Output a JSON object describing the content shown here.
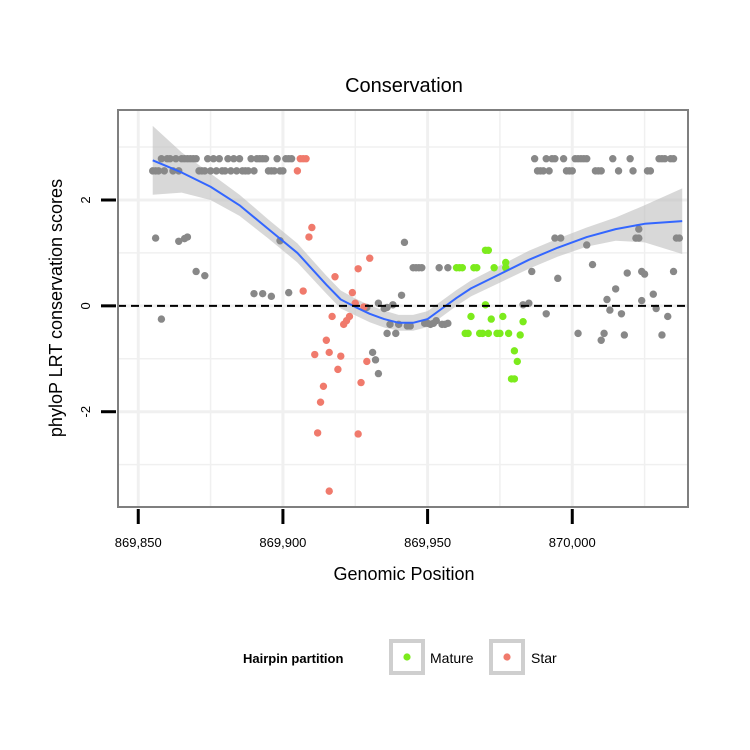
{
  "colors": {
    "background_points": "#888888",
    "mature": "#7CEB1C",
    "star": "#F07A6C",
    "smooth_line": "#3366FF",
    "ribbon": "#BEBEBE",
    "panel_border": "#7F7F7F",
    "grid": "#F0F0F0"
  },
  "chart_data": {
    "type": "scatter",
    "title": "Conservation",
    "xlabel": "Genomic Position",
    "ylabel": "phyloP LRT conservation scores",
    "xlim": [
      869843,
      870040
    ],
    "ylim": [
      -3.8,
      3.7
    ],
    "x_ticks": [
      869850,
      869900,
      869950,
      870000
    ],
    "x_tick_labels": [
      "869,850",
      "869,900",
      "869,950",
      "870,000"
    ],
    "y_ticks": [
      -2,
      0,
      2
    ],
    "y_tick_labels": [
      "-2",
      "0",
      "2"
    ],
    "hline": {
      "y": 0,
      "style": "dashed"
    },
    "legend": {
      "title": "Hairpin partition",
      "position": "bottom",
      "entries": [
        {
          "label": "Mature",
          "series": "mature"
        },
        {
          "label": "Star",
          "series": "star"
        }
      ]
    },
    "series": [
      {
        "name": "other",
        "points": [
          [
            869855,
            2.55
          ],
          [
            869856,
            2.55
          ],
          [
            869857,
            2.55
          ],
          [
            869858,
            2.78
          ],
          [
            869859,
            2.55
          ],
          [
            869860,
            2.78
          ],
          [
            869861,
            2.78
          ],
          [
            869862,
            2.55
          ],
          [
            869863,
            2.78
          ],
          [
            869864,
            2.55
          ],
          [
            869865,
            2.78
          ],
          [
            869866,
            2.78
          ],
          [
            869867,
            2.78
          ],
          [
            869868,
            2.78
          ],
          [
            869869,
            2.78
          ],
          [
            869870,
            2.78
          ],
          [
            869871,
            2.55
          ],
          [
            869872,
            2.55
          ],
          [
            869873,
            2.55
          ],
          [
            869874,
            2.78
          ],
          [
            869875,
            2.55
          ],
          [
            869876,
            2.78
          ],
          [
            869877,
            2.55
          ],
          [
            869878,
            2.78
          ],
          [
            869879,
            2.55
          ],
          [
            869880,
            2.55
          ],
          [
            869881,
            2.78
          ],
          [
            869882,
            2.55
          ],
          [
            869883,
            2.78
          ],
          [
            869884,
            2.55
          ],
          [
            869885,
            2.78
          ],
          [
            869886,
            2.55
          ],
          [
            869887,
            2.55
          ],
          [
            869888,
            2.55
          ],
          [
            869889,
            2.78
          ],
          [
            869890,
            2.55
          ],
          [
            869891,
            2.78
          ],
          [
            869892,
            2.78
          ],
          [
            869893,
            2.78
          ],
          [
            869894,
            2.78
          ],
          [
            869895,
            2.55
          ],
          [
            869896,
            2.55
          ],
          [
            869897,
            2.55
          ],
          [
            869898,
            2.78
          ],
          [
            869899,
            2.55
          ],
          [
            869900,
            2.55
          ],
          [
            869901,
            2.78
          ],
          [
            869902,
            2.78
          ],
          [
            869903,
            2.78
          ],
          [
            869856,
            1.28
          ],
          [
            869858,
            -0.25
          ],
          [
            869864,
            1.22
          ],
          [
            869866,
            1.27
          ],
          [
            869867,
            1.3
          ],
          [
            869870,
            0.65
          ],
          [
            869873,
            0.57
          ],
          [
            869890,
            0.23
          ],
          [
            869893,
            0.23
          ],
          [
            869896,
            0.18
          ],
          [
            869899,
            1.23
          ],
          [
            869902,
            0.25
          ],
          [
            869929,
            -0.03
          ],
          [
            869931,
            -0.88
          ],
          [
            869932,
            -1.02
          ],
          [
            869933,
            -1.28
          ],
          [
            869933,
            0.05
          ],
          [
            869935,
            -0.05
          ],
          [
            869936,
            -0.03
          ],
          [
            869936,
            -0.52
          ],
          [
            869937,
            -0.35
          ],
          [
            869938,
            0.02
          ],
          [
            869939,
            -0.52
          ],
          [
            869940,
            -0.35
          ],
          [
            869941,
            0.2
          ],
          [
            869942,
            1.2
          ],
          [
            869943,
            -0.38
          ],
          [
            869944,
            -0.38
          ],
          [
            869945,
            0.72
          ],
          [
            869946,
            0.72
          ],
          [
            869947,
            0.72
          ],
          [
            869948,
            0.72
          ],
          [
            869949,
            -0.33
          ],
          [
            869950,
            -0.33
          ],
          [
            869951,
            -0.35
          ],
          [
            869952,
            -0.33
          ],
          [
            869953,
            -0.28
          ],
          [
            869954,
            0.72
          ],
          [
            869955,
            -0.35
          ],
          [
            869956,
            -0.35
          ],
          [
            869957,
            0.72
          ],
          [
            869957,
            -0.33
          ],
          [
            869983,
            0.02
          ],
          [
            869985,
            0.05
          ],
          [
            869986,
            0.65
          ],
          [
            869987,
            2.78
          ],
          [
            869988,
            2.55
          ],
          [
            869989,
            2.55
          ],
          [
            869990,
            2.55
          ],
          [
            869991,
            2.78
          ],
          [
            869991,
            -0.15
          ],
          [
            869992,
            2.55
          ],
          [
            869993,
            2.78
          ],
          [
            869994,
            1.28
          ],
          [
            869994,
            2.78
          ],
          [
            869995,
            0.52
          ],
          [
            869996,
            1.28
          ],
          [
            869997,
            2.78
          ],
          [
            869998,
            2.55
          ],
          [
            869999,
            2.55
          ],
          [
            870000,
            2.55
          ],
          [
            870001,
            2.78
          ],
          [
            870002,
            2.78
          ],
          [
            870002,
            -0.52
          ],
          [
            870003,
            2.78
          ],
          [
            870004,
            2.78
          ],
          [
            870005,
            2.78
          ],
          [
            870005,
            1.15
          ],
          [
            870007,
            0.78
          ],
          [
            870008,
            2.55
          ],
          [
            870009,
            2.55
          ],
          [
            870010,
            -0.65
          ],
          [
            870010,
            2.55
          ],
          [
            870011,
            -0.52
          ],
          [
            870012,
            0.12
          ],
          [
            870013,
            -0.08
          ],
          [
            870014,
            2.78
          ],
          [
            870015,
            0.32
          ],
          [
            870016,
            2.55
          ],
          [
            870017,
            -0.15
          ],
          [
            870018,
            -0.55
          ],
          [
            870019,
            0.62
          ],
          [
            870020,
            2.78
          ],
          [
            870021,
            2.55
          ],
          [
            870022,
            1.28
          ],
          [
            870023,
            1.28
          ],
          [
            870023,
            1.45
          ],
          [
            870024,
            0.65
          ],
          [
            870024,
            0.1
          ],
          [
            870025,
            0.6
          ],
          [
            870026,
            2.55
          ],
          [
            870027,
            2.55
          ],
          [
            870028,
            0.22
          ],
          [
            870029,
            -0.05
          ],
          [
            870030,
            2.78
          ],
          [
            870031,
            -0.55
          ],
          [
            870031,
            2.78
          ],
          [
            870032,
            2.78
          ],
          [
            870033,
            -0.2
          ],
          [
            870034,
            2.78
          ],
          [
            870035,
            2.78
          ],
          [
            870035,
            0.65
          ],
          [
            870036,
            1.28
          ],
          [
            870037,
            1.28
          ]
        ]
      },
      {
        "name": "mature",
        "points": [
          [
            869960,
            0.72
          ],
          [
            869961,
            0.72
          ],
          [
            869962,
            0.72
          ],
          [
            869963,
            -0.52
          ],
          [
            869964,
            -0.52
          ],
          [
            869965,
            -0.2
          ],
          [
            869966,
            0.72
          ],
          [
            869967,
            0.72
          ],
          [
            869968,
            -0.52
          ],
          [
            869969,
            -0.52
          ],
          [
            869970,
            1.05
          ],
          [
            869970,
            0.02
          ],
          [
            869971,
            1.05
          ],
          [
            869971,
            -0.52
          ],
          [
            869972,
            -0.25
          ],
          [
            869973,
            0.72
          ],
          [
            869974,
            -0.52
          ],
          [
            869975,
            -0.52
          ],
          [
            869976,
            -0.2
          ],
          [
            869977,
            0.72
          ],
          [
            869977,
            0.82
          ],
          [
            869978,
            -0.52
          ],
          [
            869979,
            -1.38
          ],
          [
            869980,
            -1.38
          ],
          [
            869980,
            -0.85
          ],
          [
            869981,
            -1.05
          ],
          [
            869982,
            -0.55
          ],
          [
            869983,
            -0.3
          ]
        ]
      },
      {
        "name": "star",
        "points": [
          [
            869905,
            2.55
          ],
          [
            869906,
            2.78
          ],
          [
            869907,
            2.78
          ],
          [
            869908,
            2.78
          ],
          [
            869907,
            0.28
          ],
          [
            869909,
            1.3
          ],
          [
            869910,
            1.48
          ],
          [
            869911,
            -0.92
          ],
          [
            869912,
            -2.4
          ],
          [
            869913,
            -1.82
          ],
          [
            869914,
            -1.52
          ],
          [
            869915,
            -0.65
          ],
          [
            869916,
            -3.5
          ],
          [
            869916,
            -0.88
          ],
          [
            869917,
            -0.2
          ],
          [
            869918,
            0.55
          ],
          [
            869919,
            -1.2
          ],
          [
            869920,
            -0.95
          ],
          [
            869921,
            -0.35
          ],
          [
            869922,
            -0.28
          ],
          [
            869923,
            -0.2
          ],
          [
            869924,
            0.25
          ],
          [
            869925,
            0.05
          ],
          [
            869926,
            -2.42
          ],
          [
            869926,
            0.7
          ],
          [
            869927,
            -1.45
          ],
          [
            869928,
            -0.02
          ],
          [
            869929,
            -1.05
          ],
          [
            869930,
            0.9
          ]
        ]
      }
    ],
    "smooth_fit": {
      "x": [
        869855,
        869865,
        869875,
        869885,
        869895,
        869905,
        869915,
        869920,
        869925,
        869930,
        869935,
        869940,
        869945,
        869950,
        869955,
        869960,
        869965,
        869975,
        869985,
        869995,
        870005,
        870015,
        870025,
        870038
      ],
      "y": [
        2.75,
        2.52,
        2.25,
        1.9,
        1.45,
        1.0,
        0.4,
        0.12,
        -0.02,
        -0.15,
        -0.25,
        -0.32,
        -0.32,
        -0.25,
        -0.05,
        0.15,
        0.33,
        0.6,
        0.87,
        1.1,
        1.3,
        1.45,
        1.55,
        1.6
      ],
      "ci_halfwidth": [
        0.65,
        0.38,
        0.25,
        0.2,
        0.18,
        0.18,
        0.17,
        0.17,
        0.16,
        0.16,
        0.16,
        0.15,
        0.15,
        0.15,
        0.15,
        0.15,
        0.15,
        0.16,
        0.17,
        0.17,
        0.18,
        0.22,
        0.35,
        0.62
      ]
    }
  }
}
